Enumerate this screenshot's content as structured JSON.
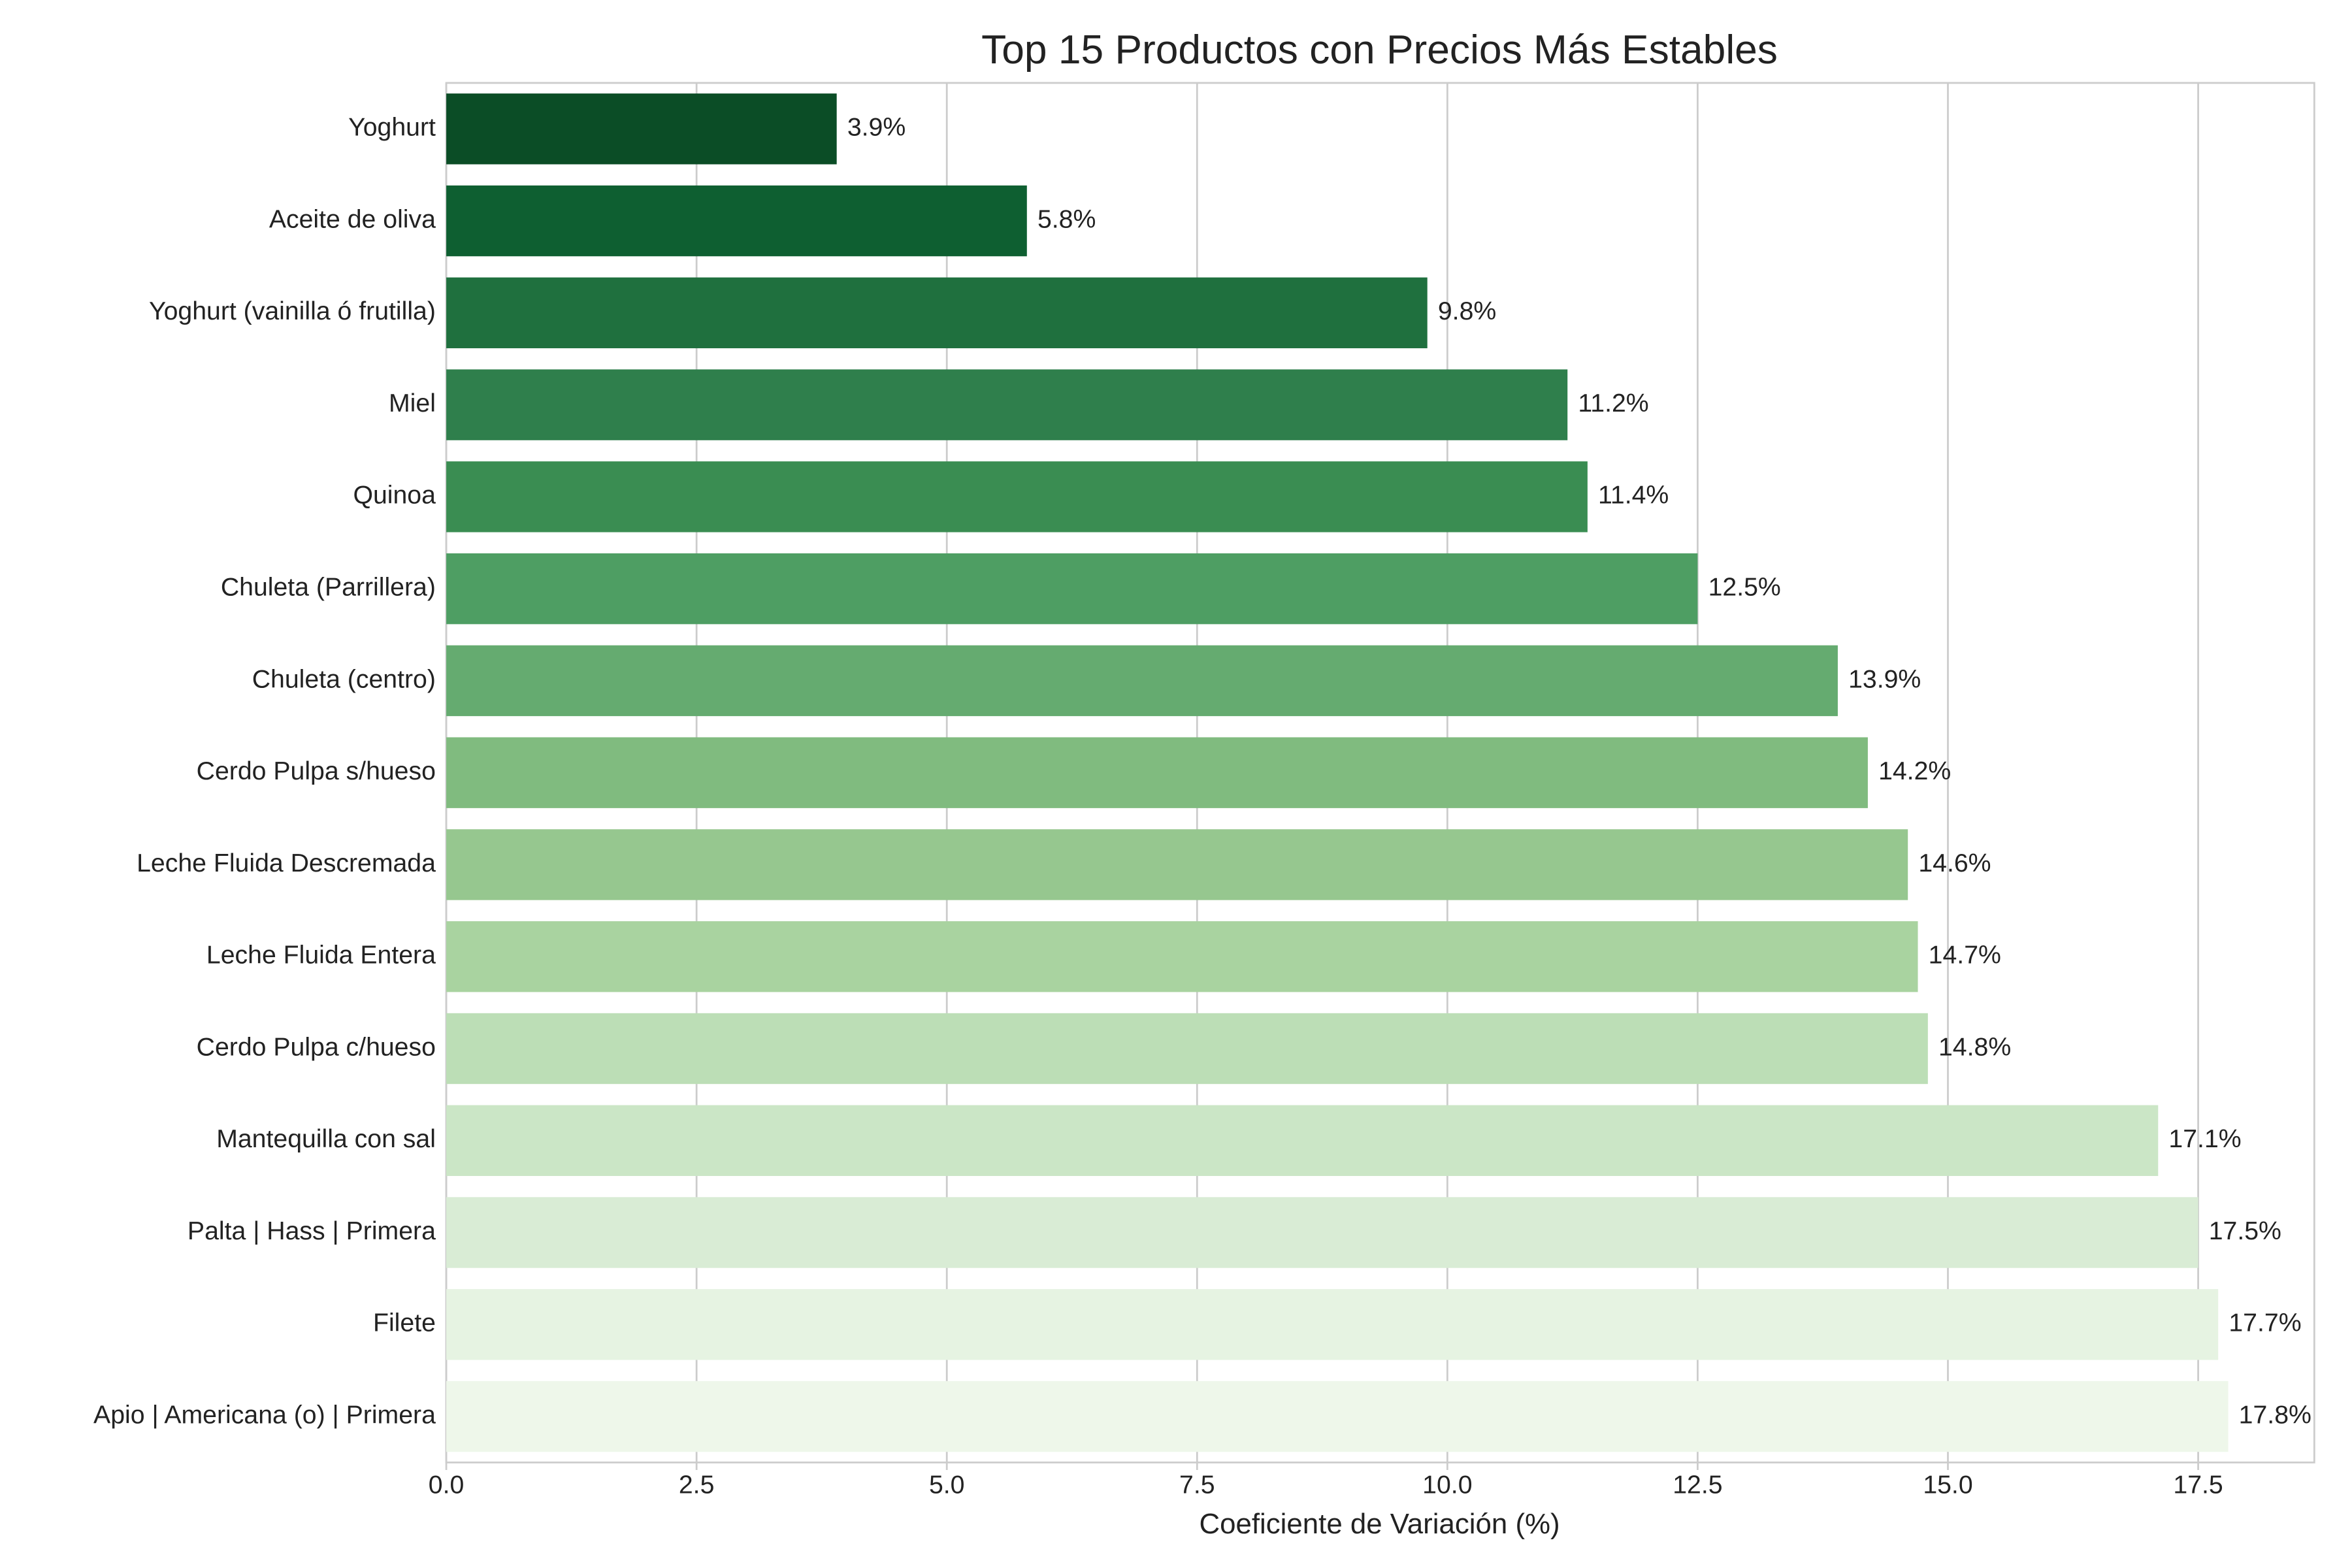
{
  "chart_data": {
    "type": "barh",
    "title": "Top 15 Productos con Precios Más Estables",
    "xlabel": "Coeficiente de Variación (%)",
    "categories": [
      "Yoghurt",
      "Aceite de oliva",
      "Yoghurt (vainilla ó frutilla)",
      "Miel",
      "Quinoa",
      "Chuleta (Parrillera)",
      "Chuleta (centro)",
      "Cerdo Pulpa s/hueso",
      "Leche Fluida Descremada",
      "Leche Fluida Entera",
      "Cerdo Pulpa c/hueso",
      "Mantequilla con sal",
      "Palta | Hass | Primera",
      "Filete",
      "Apio | Americana (o) | Primera"
    ],
    "values": [
      3.9,
      5.8,
      9.8,
      11.2,
      11.4,
      12.5,
      13.9,
      14.2,
      14.6,
      14.7,
      14.8,
      17.1,
      17.5,
      17.7,
      17.8
    ],
    "value_labels": [
      "3.9%",
      "5.8%",
      "9.8%",
      "11.2%",
      "11.4%",
      "12.5%",
      "13.9%",
      "14.2%",
      "14.6%",
      "14.7%",
      "14.8%",
      "17.1%",
      "17.5%",
      "17.7%",
      "17.8%"
    ],
    "colors": [
      "#0b4d26",
      "#0e5f31",
      "#1f703e",
      "#2f7f4c",
      "#3a8d52",
      "#4e9e63",
      "#65ab70",
      "#80bb7f",
      "#96c78f",
      "#a9d3a0",
      "#bcdeb6",
      "#cbe6c6",
      "#d9ecd5",
      "#e6f3e2",
      "#eef7ea"
    ],
    "xlim": [
      0,
      18.66
    ],
    "xticks": [
      {
        "value": 0,
        "label": "0.0"
      },
      2.5,
      {
        "value": 5,
        "label": "5.0"
      },
      7.5,
      {
        "value": 10,
        "label": "10.0"
      },
      12.5,
      {
        "value": 15,
        "label": "15.0"
      },
      17.5
    ],
    "grid": true
  }
}
